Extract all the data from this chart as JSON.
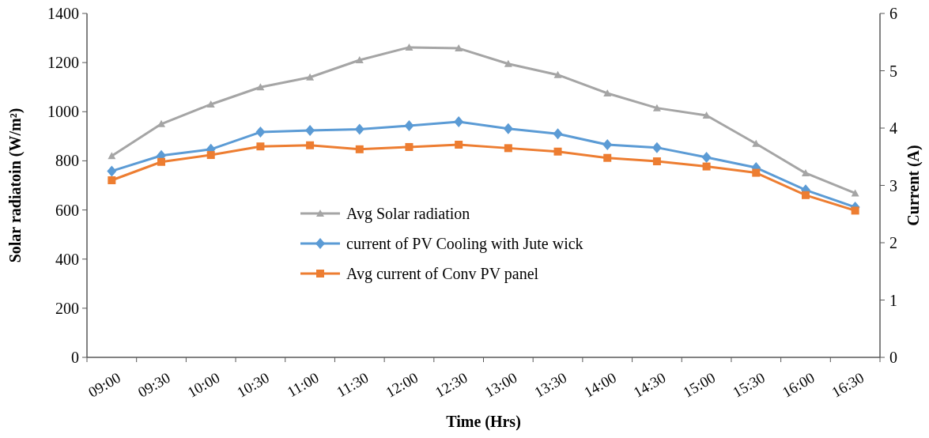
{
  "chart_data": {
    "type": "line",
    "xlabel": "Time  (Hrs)",
    "ylabel": "Solar radiatoin (W/m²)",
    "y2label": "Current (A)",
    "categories": [
      "09:00",
      "09:30",
      "10:00",
      "10:30",
      "11:00",
      "11:30",
      "12:00",
      "12:30",
      "13:00",
      "13:30",
      "14:00",
      "14:30",
      "15:00",
      "15:30",
      "16:00",
      "16:30"
    ],
    "series": [
      {
        "name": "Avg Solar radiation",
        "color": "#a5a5a5",
        "marker": "triangle",
        "values": [
          820,
          950,
          1030,
          1100,
          1140,
          1210,
          1262,
          1258,
          1195,
          1150,
          1075,
          1015,
          985,
          870,
          750,
          668
        ]
      },
      {
        "name": "current of PV Cooling with Jute wick",
        "color": "#5b9bd5",
        "marker": "diamond",
        "axis": "y2",
        "values": [
          3.25,
          3.52,
          3.63,
          3.93,
          3.96,
          3.98,
          4.04,
          4.11,
          3.99,
          3.9,
          3.71,
          3.66,
          3.49,
          3.31,
          2.92,
          2.62
        ]
      },
      {
        "name": "Avg current of Conv PV panel",
        "color": "#ed7d31",
        "marker": "square",
        "axis": "y2",
        "values": [
          3.09,
          3.41,
          3.53,
          3.68,
          3.7,
          3.63,
          3.67,
          3.71,
          3.65,
          3.59,
          3.48,
          3.42,
          3.33,
          3.22,
          2.83,
          2.56
        ]
      }
    ],
    "ylim": [
      0,
      1400
    ],
    "yticks": [
      0,
      200,
      400,
      600,
      800,
      1000,
      1200,
      1400
    ],
    "y2lim": [
      0,
      6
    ],
    "y2ticks": [
      0,
      1,
      2,
      3,
      4,
      5,
      6
    ],
    "grid": false,
    "legend": "center",
    "line_style": "solid"
  }
}
